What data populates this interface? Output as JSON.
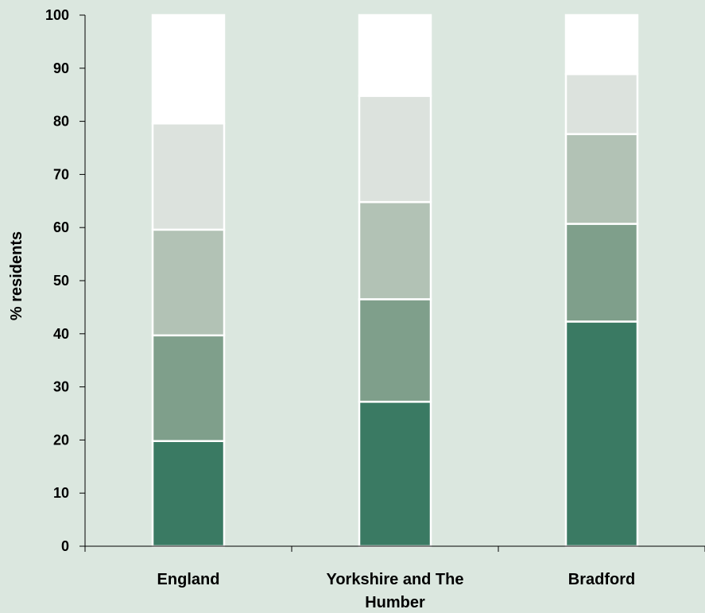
{
  "chart_data": {
    "type": "bar",
    "stacked": true,
    "title": "",
    "xlabel": "",
    "ylabel": "% residents",
    "ylim": [
      0,
      100
    ],
    "yticks": [
      0,
      10,
      20,
      30,
      40,
      50,
      60,
      70,
      80,
      90,
      100
    ],
    "categories": [
      "England",
      "Yorkshire and The Humber",
      "Bradford"
    ],
    "category_lines": [
      [
        "England"
      ],
      [
        "Yorkshire and The",
        "Humber"
      ],
      [
        "Bradford"
      ]
    ],
    "series": [
      {
        "color": "#3a7a63",
        "values": [
          19.8,
          27.2,
          42.3
        ]
      },
      {
        "color": "#7f9f8b",
        "values": [
          19.9,
          19.3,
          18.4
        ]
      },
      {
        "color": "#b2c2b5",
        "values": [
          19.9,
          18.3,
          16.9
        ]
      },
      {
        "color": "#dce2dd",
        "values": [
          20.0,
          20.0,
          11.3
        ]
      },
      {
        "color": "#ffffff",
        "values": [
          20.4,
          15.2,
          11.1
        ]
      }
    ],
    "grid": false,
    "legend": "none"
  }
}
